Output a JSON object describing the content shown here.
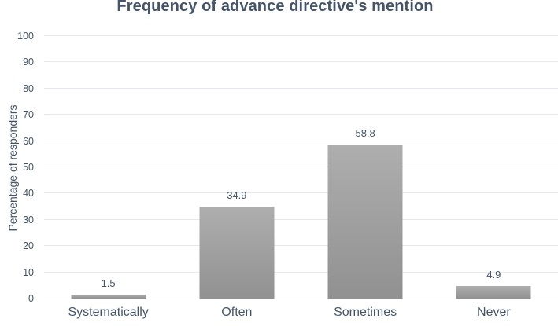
{
  "chart_data": {
    "type": "bar",
    "title": "Frequency of advance directive's mention",
    "categories": [
      "Systematically",
      "Often",
      "Sometimes",
      "Never"
    ],
    "values": [
      1.5,
      34.9,
      58.8,
      4.9
    ],
    "data_labels": [
      "1.5",
      "34.9",
      "58.8",
      "4.9"
    ],
    "xlabel": "",
    "ylabel": "Percentage of responders",
    "ylim": [
      0,
      100
    ],
    "ytick_step": 10,
    "ytick_labels": [
      "0",
      "10",
      "20",
      "30",
      "40",
      "50",
      "60",
      "70",
      "80",
      "90",
      "100"
    ],
    "grid": true,
    "legend": "none",
    "bar_style": "gray-gradient"
  },
  "colors": {
    "text": "#44546A",
    "title": "#44546A",
    "gridline": "#e5e8ee",
    "axis_line": "#d7dade",
    "bar_gradient_top": "#aeaeae",
    "bar_gradient_bottom": "#919191",
    "background": "#ffffff"
  }
}
